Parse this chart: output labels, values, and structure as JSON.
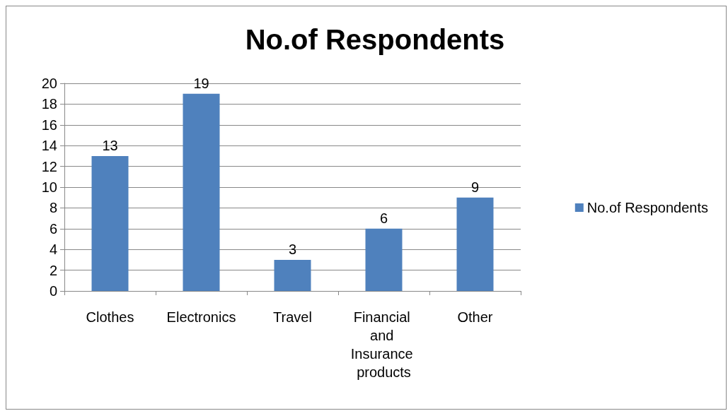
{
  "chart_data": {
    "type": "bar",
    "title": "No.of Respondents",
    "categories": [
      "Clothes",
      "Electronics",
      "Travel",
      "Financial and Insurance products",
      "Other"
    ],
    "series": [
      {
        "name": "No.of Respondents",
        "color": "#4f81bd",
        "values": [
          13,
          19,
          3,
          6,
          9
        ]
      }
    ],
    "ylim": [
      0,
      20
    ],
    "yticks": [
      0,
      2,
      4,
      6,
      8,
      10,
      12,
      14,
      16,
      18,
      20
    ],
    "grid": "y",
    "legend": "right",
    "data_labels": true
  }
}
